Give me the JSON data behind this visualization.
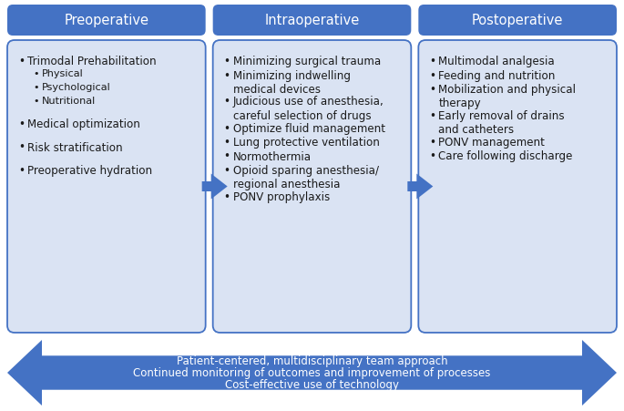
{
  "header_bg": "#4472C4",
  "header_text_color": "#FFFFFF",
  "box_bg": "#DAE3F3",
  "box_border": "#4472C4",
  "arrow_color": "#4472C4",
  "text_color": "#1a1a1a",
  "bottom_arrow_color": "#4472C4",
  "bottom_text_color": "#FFFFFF",
  "headers": [
    "Preoperative",
    "Intraoperative",
    "Postoperative"
  ],
  "preop_items": [
    {
      "text": "Trimodal Prehabilitation",
      "level": 0
    },
    {
      "text": "Physical",
      "level": 1
    },
    {
      "text": "Psychological",
      "level": 1
    },
    {
      "text": "Nutritional",
      "level": 1
    },
    {
      "text": "",
      "level": -1
    },
    {
      "text": "Medical optimization",
      "level": 0
    },
    {
      "text": "",
      "level": -1
    },
    {
      "text": "Risk stratification",
      "level": 0
    },
    {
      "text": "",
      "level": -1
    },
    {
      "text": "Preoperative hydration",
      "level": 0
    }
  ],
  "intraop_items": [
    {
      "text": "Minimizing surgical trauma",
      "level": 0
    },
    {
      "text": "Minimizing indwelling\nmedical devices",
      "level": 0
    },
    {
      "text": "Judicious use of anesthesia,\ncareful selection of drugs",
      "level": 0
    },
    {
      "text": "Optimize fluid management",
      "level": 0
    },
    {
      "text": "Lung protective ventilation",
      "level": 0
    },
    {
      "text": "Normothermia",
      "level": 0
    },
    {
      "text": "Opioid sparing anesthesia/\nregional anesthesia",
      "level": 0
    },
    {
      "text": "PONV prophylaxis",
      "level": 0
    }
  ],
  "postop_items": [
    {
      "text": "Multimodal analgesia",
      "level": 0
    },
    {
      "text": "Feeding and nutrition",
      "level": 0
    },
    {
      "text": "Mobilization and physical\ntherapy",
      "level": 0
    },
    {
      "text": "Early removal of drains\nand catheters",
      "level": 0
    },
    {
      "text": "PONV management",
      "level": 0
    },
    {
      "text": "Care following discharge",
      "level": 0
    }
  ],
  "bottom_lines": [
    "Patient-centered, multidisciplinary team approach",
    "Continued monitoring of outcomes and improvement of processes",
    "Cost-effective use of technology"
  ],
  "fig_width": 6.85,
  "fig_height": 4.52,
  "dpi": 100
}
